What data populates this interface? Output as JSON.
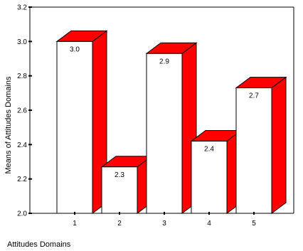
{
  "chart_data": {
    "type": "bar",
    "style": "3d-bar",
    "categories": [
      "1",
      "2",
      "3",
      "4",
      "5"
    ],
    "values": [
      3.0,
      2.27,
      2.93,
      2.42,
      2.73
    ],
    "data_labels": [
      "3.0",
      "2.3",
      "2.9",
      "2.4",
      "2.7"
    ],
    "xlabel": "Attitudes Domains",
    "ylabel": "Means of Attitudes Domains",
    "ylim": [
      2.0,
      3.2
    ],
    "yticks": [
      "2.0",
      "2.2",
      "2.4",
      "2.6",
      "2.8",
      "3.0",
      "3.2"
    ],
    "grid": false,
    "legend": "none",
    "colors": {
      "bar_front": "#ffffff",
      "bar_side": "#ff0000",
      "outline": "#000000"
    }
  }
}
